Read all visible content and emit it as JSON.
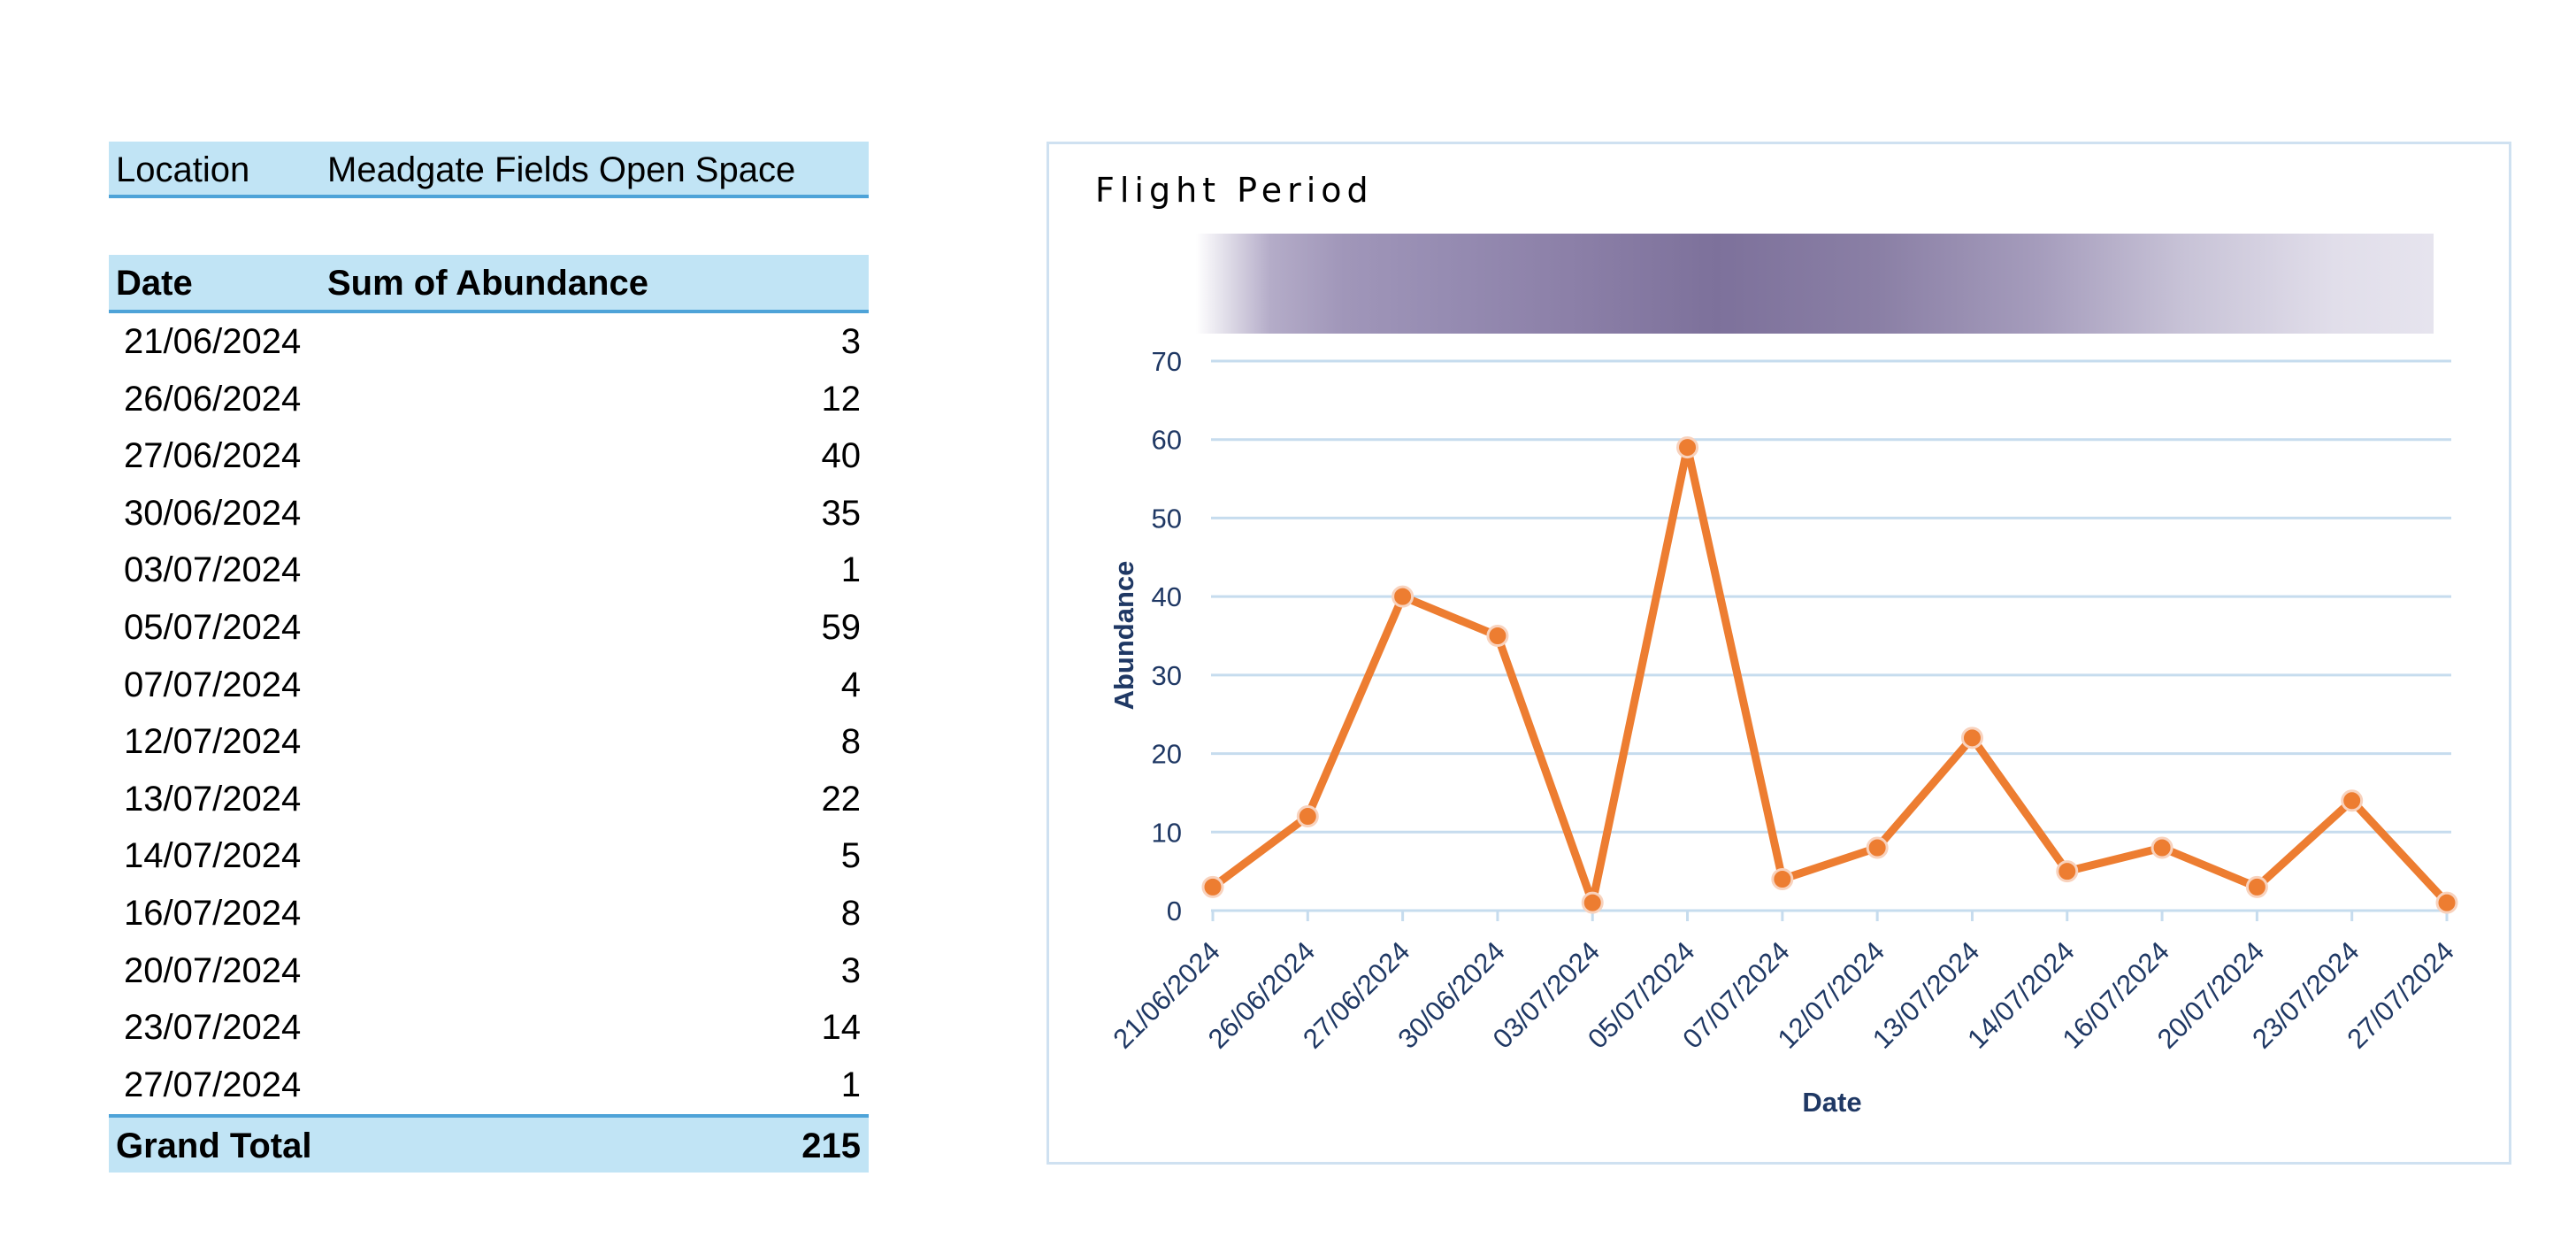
{
  "pivot": {
    "filter_label": "Location",
    "filter_value": "Meadgate Fields Open Space",
    "header_date": "Date",
    "header_sum": "Sum of Abundance",
    "rows": [
      {
        "date": "21/06/2024",
        "value": "3"
      },
      {
        "date": "26/06/2024",
        "value": "12"
      },
      {
        "date": "27/06/2024",
        "value": "40"
      },
      {
        "date": "30/06/2024",
        "value": "35"
      },
      {
        "date": "03/07/2024",
        "value": "1"
      },
      {
        "date": "05/07/2024",
        "value": "59"
      },
      {
        "date": "07/07/2024",
        "value": "4"
      },
      {
        "date": "12/07/2024",
        "value": "8"
      },
      {
        "date": "13/07/2024",
        "value": "22"
      },
      {
        "date": "14/07/2024",
        "value": "5"
      },
      {
        "date": "16/07/2024",
        "value": "8"
      },
      {
        "date": "20/07/2024",
        "value": "3"
      },
      {
        "date": "23/07/2024",
        "value": "14"
      },
      {
        "date": "27/07/2024",
        "value": "1"
      }
    ],
    "total_label": "Grand Total",
    "total_value": "215"
  },
  "chart_data": {
    "type": "line",
    "title": "Flight Period",
    "xlabel": "Date",
    "ylabel": "Abundance",
    "categories": [
      "21/06/2024",
      "26/06/2024",
      "27/06/2024",
      "30/06/2024",
      "03/07/2024",
      "05/07/2024",
      "07/07/2024",
      "12/07/2024",
      "13/07/2024",
      "14/07/2024",
      "16/07/2024",
      "20/07/2024",
      "23/07/2024",
      "27/07/2024"
    ],
    "series": [
      {
        "values": [
          3,
          12,
          40,
          35,
          1,
          59,
          4,
          8,
          22,
          5,
          8,
          3,
          14,
          1
        ]
      }
    ],
    "ylim": [
      0,
      70
    ],
    "yticks": [
      0,
      10,
      20,
      30,
      40,
      50,
      60,
      70
    ],
    "grid": true,
    "line_color": "#ed7d31",
    "gridline_color": "#c6dcee",
    "axis_text_color": "#1f3864",
    "band_color": "#7d719b"
  }
}
